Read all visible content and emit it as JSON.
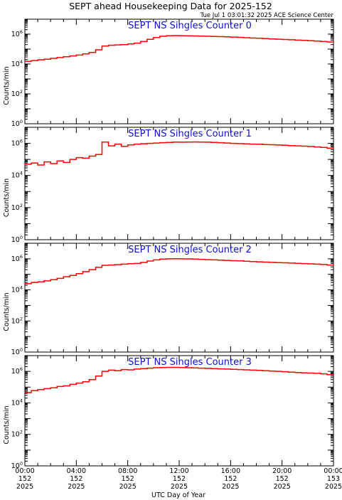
{
  "title": "SEPT ahead Housekeeping Data for 2025-152",
  "timestamp": "Tue Jul  1 03:01:32 2025 ACE Science Center",
  "xlabel": "UTC Day of Year",
  "colors": {
    "trace": "#ff0000",
    "panel_title": "#1010cc",
    "axes": "#000000"
  },
  "chart_data": {
    "type": "line",
    "style": "step",
    "yscale": "log",
    "ylim": [
      1,
      10000000
    ],
    "ylabel": "Counts/min",
    "yticks": [
      {
        "value": 1,
        "base": "10",
        "exp": "0"
      },
      {
        "value": 100,
        "base": "10",
        "exp": "2"
      },
      {
        "value": 10000,
        "base": "10",
        "exp": "4"
      },
      {
        "value": 1000000,
        "base": "10",
        "exp": "6"
      }
    ],
    "xlim": [
      0,
      24
    ],
    "xunit": "hours UTC",
    "xticks": [
      {
        "value": 0,
        "time": "00:00",
        "doy": "152",
        "year": "2025"
      },
      {
        "value": 4,
        "time": "04:00",
        "doy": "152",
        "year": "2025"
      },
      {
        "value": 8,
        "time": "08:00",
        "doy": "152",
        "year": "2025"
      },
      {
        "value": 12,
        "time": "12:00",
        "doy": "152",
        "year": "2025"
      },
      {
        "value": 16,
        "time": "16:00",
        "doy": "152",
        "year": "2025"
      },
      {
        "value": 20,
        "time": "20:00",
        "doy": "152",
        "year": "2025"
      },
      {
        "value": 24,
        "time": "00:00",
        "doy": "153",
        "year": "2025"
      }
    ],
    "panels": [
      {
        "title": "SEPT NS Singles Counter 0",
        "x": [
          0,
          0.5,
          1,
          1.5,
          2,
          2.5,
          3,
          3.5,
          4,
          4.5,
          5,
          5.5,
          6,
          6.5,
          7,
          7.5,
          8,
          8.5,
          9,
          9.5,
          10,
          10.5,
          11,
          11.5,
          12,
          12.5,
          13,
          13.5,
          14,
          14.5,
          15,
          15.5,
          16,
          16.5,
          17,
          17.5,
          18,
          18.5,
          19,
          19.5,
          20,
          20.5,
          21,
          21.5,
          22,
          22.5,
          23,
          23.5
        ],
        "y": [
          15000,
          17000,
          19000,
          21000,
          24000,
          27000,
          31000,
          35000,
          40000,
          48000,
          60000,
          90000,
          160000,
          180000,
          190000,
          200000,
          220000,
          250000,
          320000,
          450000,
          600000,
          720000,
          780000,
          800000,
          780000,
          770000,
          760000,
          740000,
          720000,
          700000,
          680000,
          660000,
          640000,
          610000,
          580000,
          550000,
          530000,
          500000,
          480000,
          460000,
          440000,
          420000,
          400000,
          380000,
          360000,
          340000,
          320000,
          300000
        ]
      },
      {
        "title": "SEPT NS Singles Counter 1",
        "x": [
          0,
          0.5,
          1,
          1.5,
          2,
          2.5,
          3,
          3.5,
          4,
          4.5,
          5,
          5.5,
          6,
          6.5,
          7,
          7.5,
          8,
          8.5,
          9,
          9.5,
          10,
          10.5,
          11,
          11.5,
          12,
          12.5,
          13,
          13.5,
          14,
          14.5,
          15,
          15.5,
          16,
          16.5,
          17,
          17.5,
          18,
          18.5,
          19,
          19.5,
          20,
          20.5,
          21,
          21.5,
          22,
          22.5,
          23,
          23.5
        ],
        "y": [
          50000,
          60000,
          45000,
          70000,
          55000,
          80000,
          65000,
          100000,
          130000,
          120000,
          160000,
          200000,
          1200000,
          700000,
          900000,
          650000,
          800000,
          900000,
          950000,
          1000000,
          1050000,
          1100000,
          1150000,
          1200000,
          1180000,
          1200000,
          1220000,
          1200000,
          1180000,
          1150000,
          1100000,
          1050000,
          1000000,
          970000,
          940000,
          900000,
          880000,
          850000,
          820000,
          790000,
          760000,
          730000,
          700000,
          670000,
          640000,
          600000,
          560000,
          500000
        ]
      },
      {
        "title": "SEPT NS Singles Counter 2",
        "x": [
          0,
          0.5,
          1,
          1.5,
          2,
          2.5,
          3,
          3.5,
          4,
          4.5,
          5,
          5.5,
          6,
          6.5,
          7,
          7.5,
          8,
          8.5,
          9,
          9.5,
          10,
          10.5,
          11,
          11.5,
          12,
          12.5,
          13,
          13.5,
          14,
          14.5,
          15,
          15.5,
          16,
          16.5,
          17,
          17.5,
          18,
          18.5,
          19,
          19.5,
          20,
          20.5,
          21,
          21.5,
          22,
          22.5,
          23,
          23.5
        ],
        "y": [
          25000,
          30000,
          33000,
          38000,
          45000,
          55000,
          70000,
          85000,
          110000,
          150000,
          200000,
          280000,
          380000,
          400000,
          420000,
          450000,
          480000,
          500000,
          580000,
          720000,
          850000,
          950000,
          1000000,
          1020000,
          1000000,
          980000,
          950000,
          920000,
          880000,
          850000,
          820000,
          790000,
          760000,
          730000,
          700000,
          670000,
          640000,
          610000,
          590000,
          570000,
          550000,
          530000,
          510000,
          490000,
          470000,
          450000,
          430000,
          400000
        ]
      },
      {
        "title": "SEPT NS Singles Counter 3",
        "x": [
          0,
          0.5,
          1,
          1.5,
          2,
          2.5,
          3,
          3.5,
          4,
          4.5,
          5,
          5.5,
          6,
          6.5,
          7,
          7.5,
          8,
          8.5,
          9,
          9.5,
          10,
          10.5,
          11,
          11.5,
          12,
          12.5,
          13,
          13.5,
          14,
          14.5,
          15,
          15.5,
          16,
          16.5,
          17,
          17.5,
          18,
          18.5,
          19,
          19.5,
          20,
          20.5,
          21,
          21.5,
          22,
          22.5,
          23,
          23.5
        ],
        "y": [
          45000,
          60000,
          70000,
          80000,
          90000,
          110000,
          120000,
          150000,
          180000,
          220000,
          300000,
          500000,
          1000000,
          1200000,
          1100000,
          1300000,
          1250000,
          1400000,
          1500000,
          1600000,
          1700000,
          1750000,
          1800000,
          1800000,
          1750000,
          1700000,
          1650000,
          1600000,
          1550000,
          1500000,
          1450000,
          1400000,
          1350000,
          1300000,
          1250000,
          1200000,
          1150000,
          1100000,
          1050000,
          1000000,
          950000,
          900000,
          850000,
          800000,
          780000,
          750000,
          700000,
          620000
        ]
      }
    ]
  }
}
